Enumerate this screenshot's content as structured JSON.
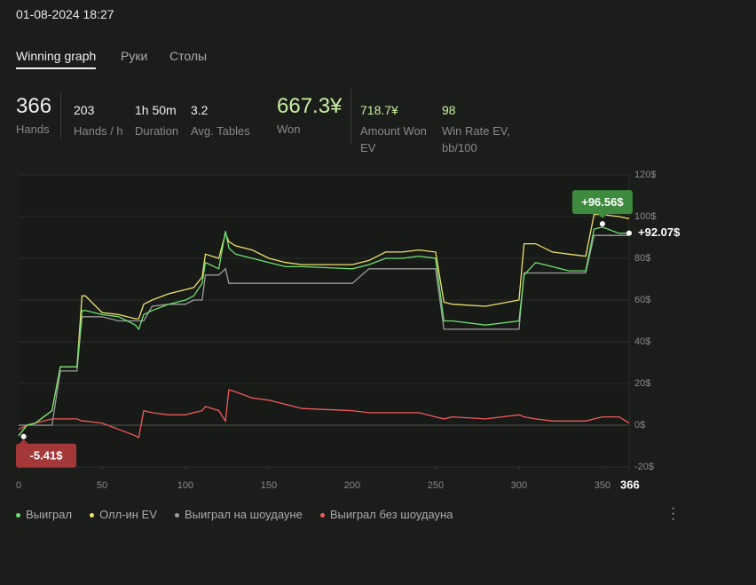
{
  "header": {
    "datetime": "01-08-2024 18:27",
    "tabs": [
      "Winning graph",
      "Руки",
      "Столы"
    ]
  },
  "stats": [
    {
      "value": "366",
      "label": "Hands"
    },
    {
      "value": "203",
      "label": "Hands / h"
    },
    {
      "value": "1h 50m",
      "label": "Duration"
    },
    {
      "value": "3.2",
      "label": "Avg. Tables"
    },
    {
      "value": "667.3¥",
      "label": "Won"
    },
    {
      "value": "718.7¥",
      "label": "Amount Won EV"
    },
    {
      "value": "98",
      "label": "Win Rate EV, bb/100"
    }
  ],
  "chart_data": {
    "type": "line",
    "x": [
      0,
      5,
      10,
      20,
      25,
      28,
      35,
      38,
      40,
      50,
      60,
      70,
      72,
      75,
      80,
      90,
      100,
      105,
      110,
      112,
      120,
      124,
      126,
      130,
      140,
      150,
      160,
      170,
      200,
      210,
      220,
      230,
      240,
      250,
      255,
      260,
      280,
      300,
      303,
      310,
      320,
      330,
      340,
      345,
      350,
      360,
      366
    ],
    "series": [
      {
        "name": "Выиграл",
        "color": "#6fe06f",
        "values": [
          -5,
          0,
          1,
          7,
          28,
          28,
          28,
          55,
          55,
          53,
          52,
          48,
          46,
          53,
          55,
          58,
          60,
          62,
          68,
          78,
          75,
          93,
          85,
          82,
          80,
          78,
          76,
          76,
          75,
          77,
          80,
          80,
          81,
          80,
          50,
          50,
          48,
          50,
          72,
          78,
          76,
          74,
          74,
          94,
          95,
          92,
          92.07
        ]
      },
      {
        "name": "Олл-ин EV",
        "color": "#f0e26a",
        "values": [
          -5,
          0,
          1,
          7,
          28,
          28,
          28,
          62,
          62,
          54,
          53,
          51,
          51,
          58,
          60,
          63,
          65,
          66,
          71,
          82,
          80,
          92,
          88,
          86,
          84,
          80,
          78,
          77,
          77,
          79,
          83,
          83,
          84,
          83,
          59,
          58,
          57,
          60,
          87,
          87,
          83,
          82,
          81,
          101,
          101,
          100,
          99
        ]
      },
      {
        "name": "Выиграл на шоудауне",
        "color": "#9c9c9c",
        "values": [
          0,
          0,
          0,
          0,
          26,
          26,
          26,
          52,
          52,
          52,
          50,
          50,
          50,
          50,
          57,
          58,
          58,
          60,
          60,
          72,
          72,
          75,
          68,
          68,
          68,
          68,
          68,
          68,
          68,
          75,
          75,
          75,
          75,
          75,
          46,
          46,
          46,
          46,
          73,
          73,
          73,
          73,
          73,
          91,
          91,
          91,
          91
        ]
      },
      {
        "name": "Выиграл без шоудауна",
        "color": "#f05a5a",
        "values": [
          -2,
          0,
          1,
          3,
          3,
          3,
          3,
          2,
          2,
          1,
          -2,
          -5,
          -6,
          7,
          6,
          5,
          5,
          6,
          7,
          9,
          7,
          2,
          17,
          16,
          13,
          12,
          10,
          8,
          7,
          6,
          6,
          6,
          6,
          4,
          3,
          4,
          3,
          5,
          4,
          3,
          2,
          2,
          2,
          3,
          4,
          4,
          1
        ]
      }
    ],
    "xlim": [
      0,
      366
    ],
    "xticks": [
      0,
      50,
      100,
      150,
      200,
      250,
      300,
      350,
      366
    ],
    "ylim": [
      -20,
      120
    ],
    "yticks": [
      {
        "value": -20,
        "label": "-20$"
      },
      {
        "value": 0,
        "label": "0$"
      },
      {
        "value": 20,
        "label": "20$"
      },
      {
        "value": 40,
        "label": "40$"
      },
      {
        "value": 60,
        "label": "60$"
      },
      {
        "value": 80,
        "label": "80$"
      },
      {
        "value": 100,
        "label": "100$"
      },
      {
        "value": 120,
        "label": "120$"
      }
    ],
    "grid": true,
    "annotations": [
      {
        "text": "+96.56$",
        "x": 350,
        "y": 96.56,
        "color": "#3e8a3e"
      },
      {
        "text": "+92.07$",
        "x": 366,
        "y": 92.07
      },
      {
        "text": "-5.41$",
        "x": 3,
        "y": -5.41,
        "color": "#a43838"
      }
    ]
  }
}
